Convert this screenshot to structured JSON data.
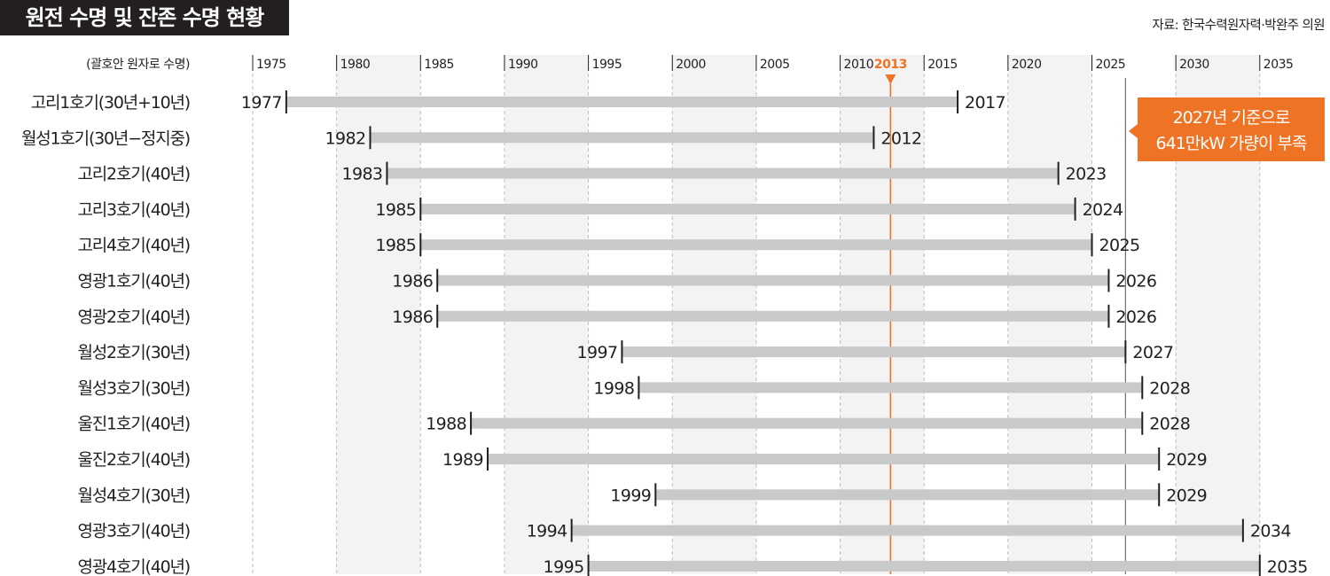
{
  "title": "원전 수명 및 잔존 수명 현황",
  "source": "자료: 한국수력원자력·박완주 의원",
  "chart_data": {
    "type": "bar",
    "subtype": "range-timeline",
    "ylabel": "(괄호안 원자로 수명)",
    "xlim": [
      1975,
      2035
    ],
    "x_ticks": [
      "1975",
      "1980",
      "1985",
      "1990",
      "1995",
      "2000",
      "2005",
      "2010",
      "2013",
      "2015",
      "2020",
      "2025",
      "2030",
      "2035"
    ],
    "highlight_year": "2013",
    "reference_year": 2027,
    "grid": true,
    "rows": [
      {
        "label": "고리1호기(30년+10년)",
        "start": "1977",
        "end": "2017"
      },
      {
        "label": "월성1호기(30년−정지중)",
        "start": "1982",
        "end": "2012"
      },
      {
        "label": "고리2호기(40년)",
        "start": "1983",
        "end": "2023"
      },
      {
        "label": "고리3호기(40년)",
        "start": "1985",
        "end": "2024"
      },
      {
        "label": "고리4호기(40년)",
        "start": "1985",
        "end": "2025"
      },
      {
        "label": "영광1호기(40년)",
        "start": "1986",
        "end": "2026"
      },
      {
        "label": "영광2호기(40년)",
        "start": "1986",
        "end": "2026"
      },
      {
        "label": "월성2호기(30년)",
        "start": "1997",
        "end": "2027"
      },
      {
        "label": "월성3호기(30년)",
        "start": "1998",
        "end": "2028"
      },
      {
        "label": "울진1호기(40년)",
        "start": "1988",
        "end": "2028"
      },
      {
        "label": "울진2호기(40년)",
        "start": "1989",
        "end": "2029"
      },
      {
        "label": "월성4호기(30년)",
        "start": "1999",
        "end": "2029"
      },
      {
        "label": "영광3호기(40년)",
        "start": "1994",
        "end": "2034"
      },
      {
        "label": "영광4호기(40년)",
        "start": "1995",
        "end": "2035"
      }
    ],
    "annotation": {
      "lines": [
        "2027년 기준으로",
        "641만kW 가량이 부족"
      ]
    },
    "colors": {
      "bar": "#c8c9cb",
      "highlight": "#ee7324",
      "shade": "#f3f3f3",
      "title_bg": "#231f20",
      "text": "#231f20"
    }
  }
}
